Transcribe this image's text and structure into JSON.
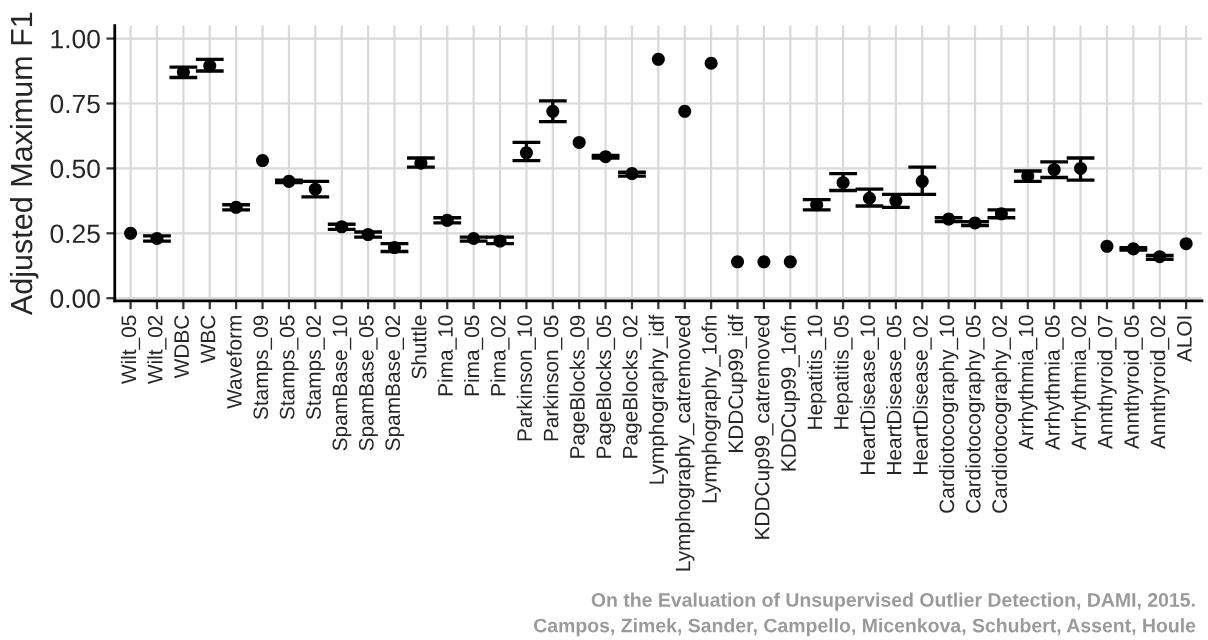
{
  "chart_data": {
    "type": "scatter",
    "ylabel": "Adjusted Maximum F1",
    "categories": [
      "Wilt_05",
      "Wilt_02",
      "WDBC",
      "WBC",
      "Waveform",
      "Stamps_09",
      "Stamps_05",
      "Stamps_02",
      "SpamBase_10",
      "SpamBase_05",
      "SpamBase_02",
      "Shuttle",
      "Pima_10",
      "Pima_05",
      "Pima_02",
      "Parkinson_10",
      "Parkinson_05",
      "PageBlocks_09",
      "PageBlocks_05",
      "PageBlocks_02",
      "Lymphography_idf",
      "Lymphography_catremoved",
      "Lymphography_1ofn",
      "KDDCup99_idf",
      "KDDCup99_catremoved",
      "KDDCup99_1ofn",
      "Hepatitis_10",
      "Hepatitis_05",
      "HeartDisease_10",
      "HeartDisease_05",
      "HeartDisease_02",
      "Cardiotocography_10",
      "Cardiotocography_05",
      "Cardiotocography_02",
      "Arrhythmia_10",
      "Arrhythmia_05",
      "Arrhythmia_02",
      "Annthyroid_07",
      "Annthyroid_05",
      "Annthyroid_02",
      "ALOI"
    ],
    "values": [
      0.25,
      0.23,
      0.87,
      0.895,
      0.35,
      0.53,
      0.45,
      0.42,
      0.275,
      0.245,
      0.195,
      0.52,
      0.3,
      0.23,
      0.22,
      0.56,
      0.72,
      0.6,
      0.545,
      0.48,
      0.92,
      0.72,
      0.905,
      0.14,
      0.14,
      0.14,
      0.36,
      0.445,
      0.385,
      0.375,
      0.45,
      0.305,
      0.29,
      0.325,
      0.47,
      0.495,
      0.5,
      0.2,
      0.19,
      0.16,
      0.21
    ],
    "errors": [
      null,
      [
        0.22,
        0.24
      ],
      [
        0.85,
        0.89
      ],
      [
        0.875,
        0.92
      ],
      [
        0.34,
        0.36
      ],
      null,
      [
        0.445,
        0.455
      ],
      [
        0.39,
        0.45
      ],
      [
        0.265,
        0.285
      ],
      [
        0.235,
        0.255
      ],
      [
        0.18,
        0.21
      ],
      [
        0.505,
        0.54
      ],
      [
        0.29,
        0.31
      ],
      [
        0.22,
        0.235
      ],
      [
        0.21,
        0.235
      ],
      [
        0.53,
        0.6
      ],
      [
        0.68,
        0.76
      ],
      null,
      [
        0.54,
        0.55
      ],
      [
        0.47,
        0.485
      ],
      null,
      null,
      null,
      null,
      null,
      null,
      [
        0.34,
        0.38
      ],
      [
        0.415,
        0.48
      ],
      [
        0.355,
        0.42
      ],
      [
        0.35,
        0.4
      ],
      [
        0.4,
        0.505
      ],
      [
        0.295,
        0.31
      ],
      [
        0.28,
        0.295
      ],
      [
        0.31,
        0.34
      ],
      [
        0.45,
        0.49
      ],
      [
        0.465,
        0.525
      ],
      [
        0.455,
        0.54
      ],
      null,
      [
        0.185,
        0.195
      ],
      [
        0.15,
        0.165
      ],
      null
    ],
    "color": "#000000",
    "marker": "circle",
    "ylim": [
      -0.01,
      1.05
    ],
    "yticks": [
      {
        "value": 0,
        "label": "0.00"
      },
      {
        "value": 0.25,
        "label": "0.25"
      },
      {
        "value": 0.5,
        "label": "0.50"
      },
      {
        "value": 0.75,
        "label": "0.75"
      },
      {
        "value": 1,
        "label": "1.00"
      }
    ],
    "grid": true,
    "annotations": [
      "On the Evaluation of Unsupervised Outlier Detection, DAMI, 2015.",
      "Campos, Zimek, Sander, Campello, Micenkova, Schubert, Assent, Houle"
    ]
  }
}
